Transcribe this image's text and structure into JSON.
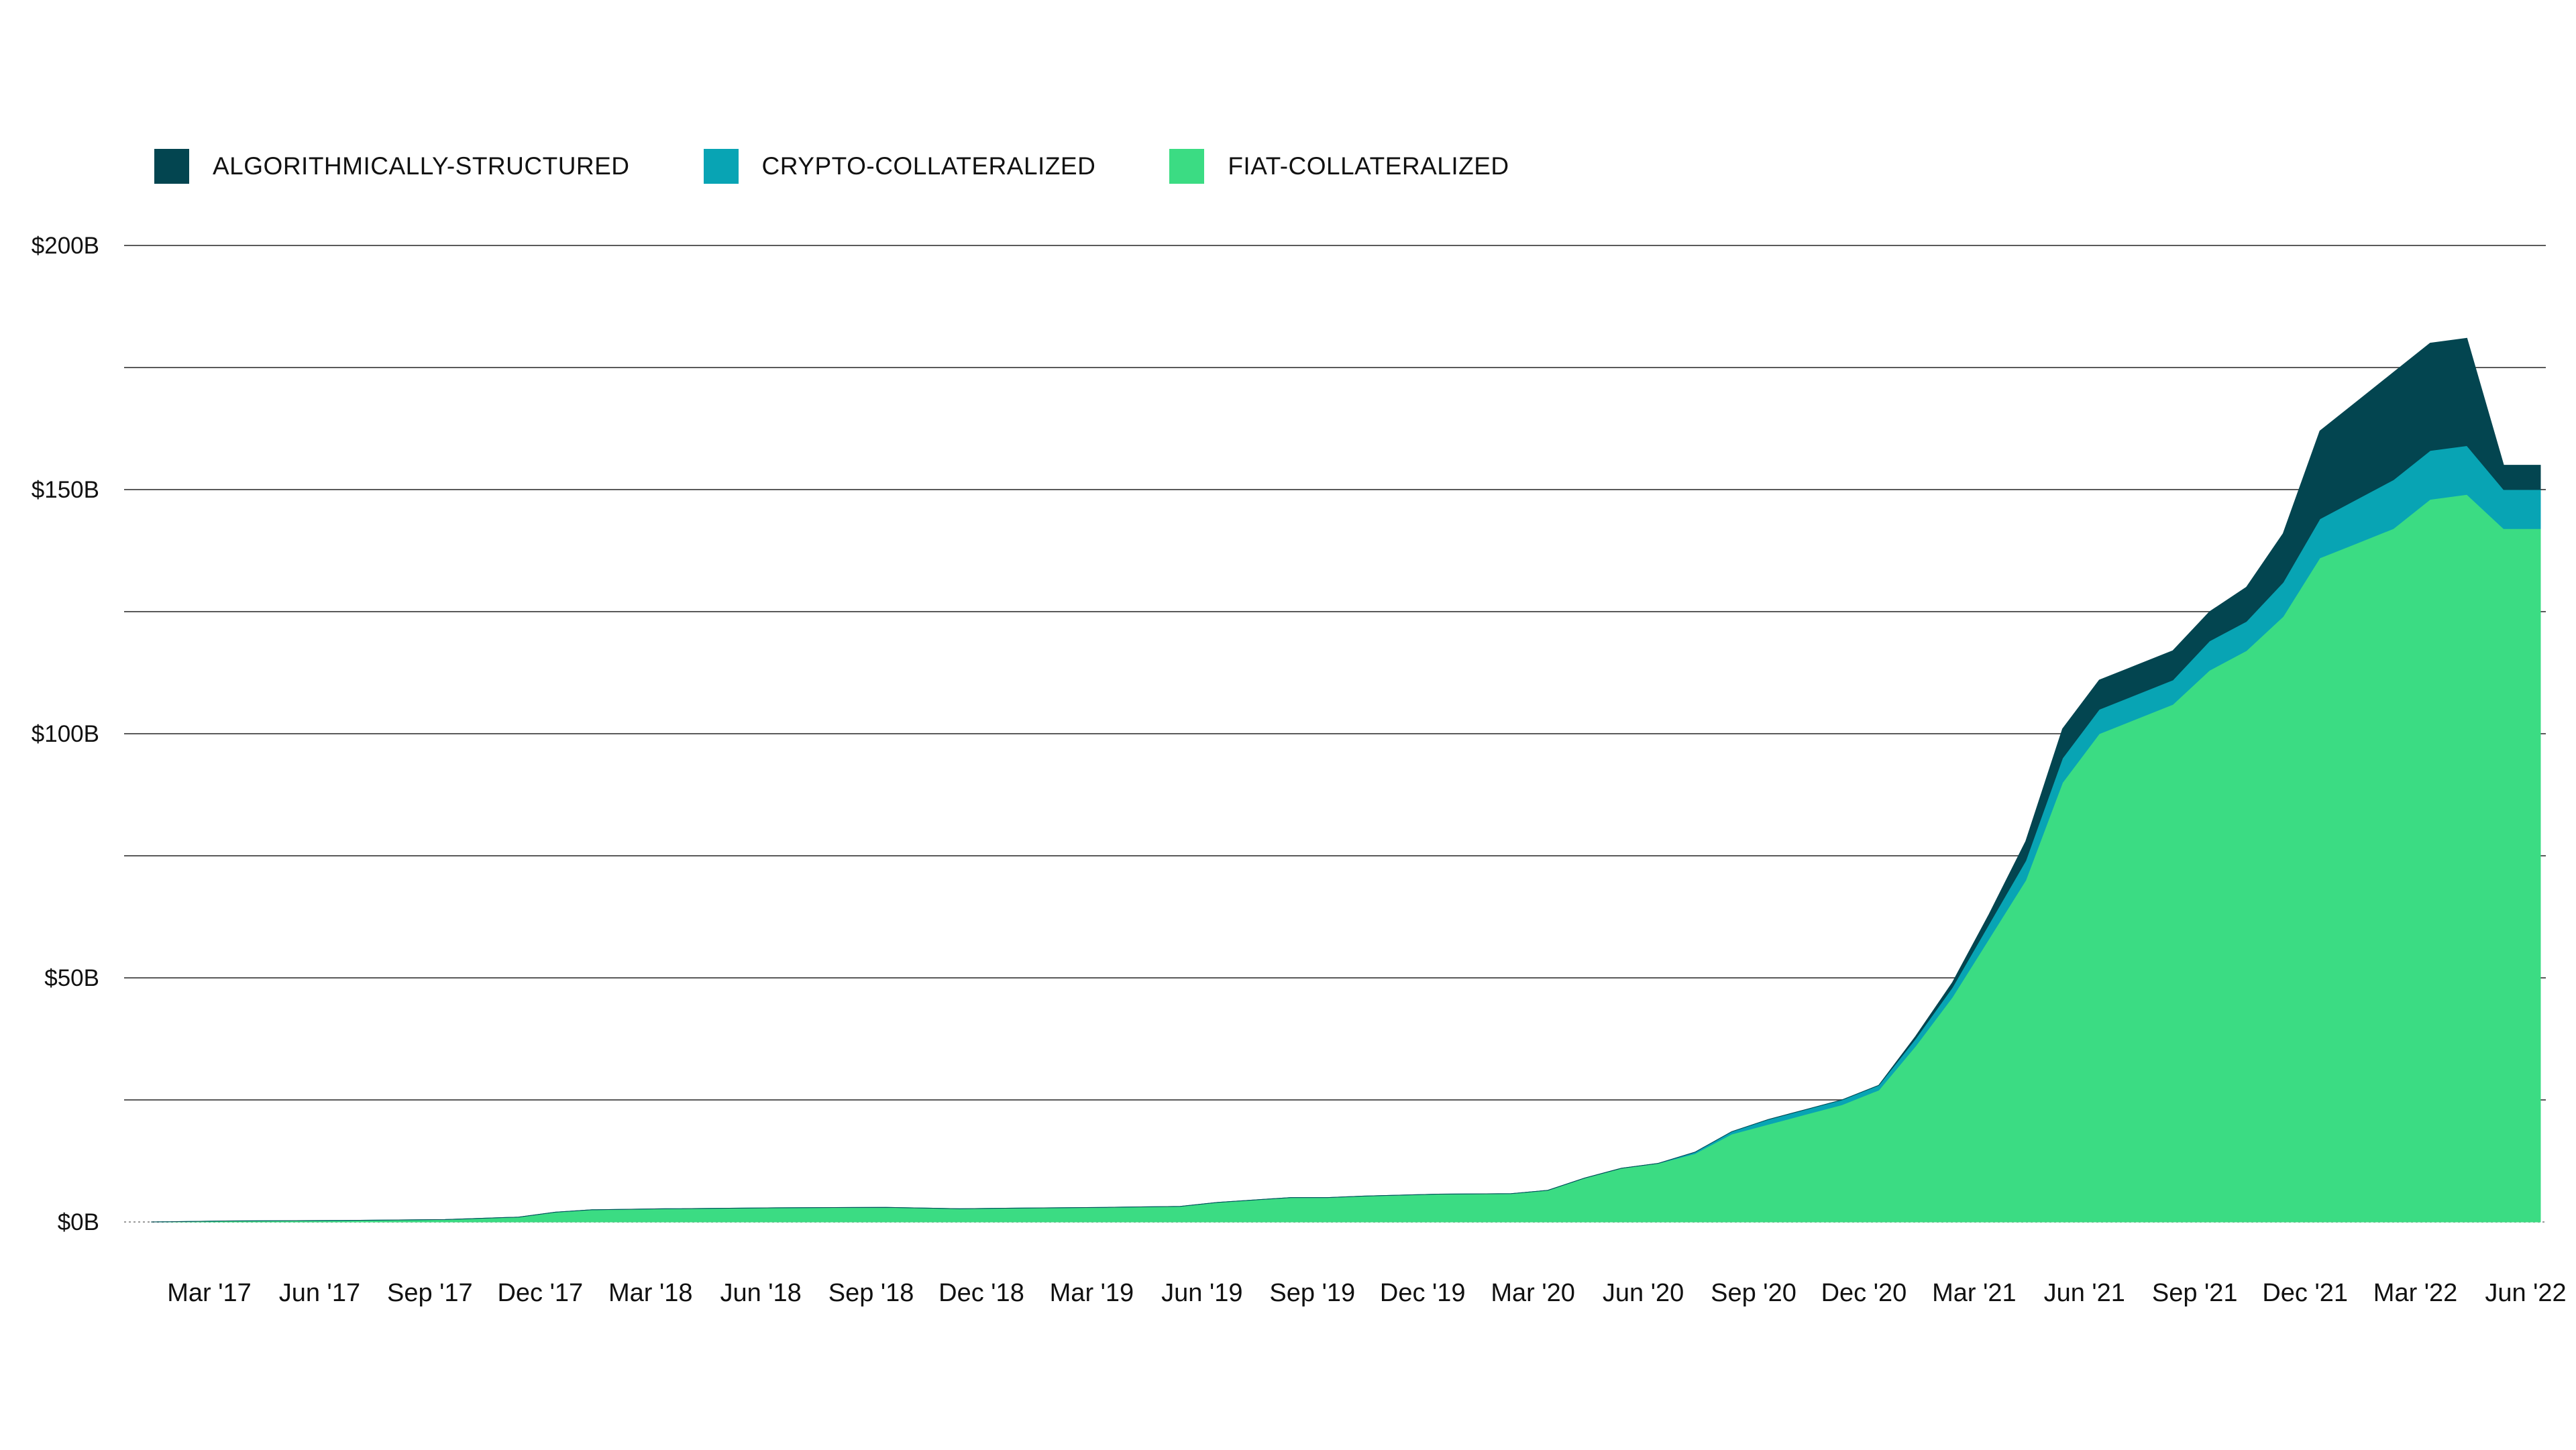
{
  "chart_data": {
    "type": "area",
    "stacked": true,
    "title": "",
    "xlabel": "",
    "ylabel": "",
    "ylim": [
      0,
      200
    ],
    "y_unit": "B",
    "y_ticks": [
      "$200B",
      "$150B",
      "$100B",
      "$50B",
      "$0B"
    ],
    "y_tick_values": [
      200,
      150,
      100,
      50,
      0
    ],
    "x_ticks": [
      "Mar '17",
      "Jun '17",
      "Sep '17",
      "Dec '17",
      "Mar '18",
      "Jun '18",
      "Sep '18",
      "Dec '18",
      "Mar '19",
      "Jun '19",
      "Sep '19",
      "Dec '19",
      "Mar '20",
      "Jun '20",
      "Sep '20",
      "Dec '20",
      "Mar '21",
      "Jun '21",
      "Sep '21",
      "Dec '21",
      "Mar '22",
      "Jun '22"
    ],
    "grid": true,
    "legend_position": "top-left",
    "x": [
      "2017-01",
      "2017-03",
      "2017-06",
      "2017-09",
      "2017-11",
      "2017-12",
      "2018-01",
      "2018-03",
      "2018-06",
      "2018-09",
      "2018-11",
      "2018-12",
      "2019-03",
      "2019-05",
      "2019-06",
      "2019-08",
      "2019-09",
      "2019-10",
      "2019-12",
      "2020-02",
      "2020-03",
      "2020-04",
      "2020-05",
      "2020-06",
      "2020-07",
      "2020-08",
      "2020-09",
      "2020-10",
      "2020-11",
      "2020-12",
      "2021-01",
      "2021-02",
      "2021-03",
      "2021-04",
      "2021-05",
      "2021-06",
      "2021-07",
      "2021-08",
      "2021-09",
      "2021-10",
      "2021-11",
      "2021-12",
      "2022-01",
      "2022-02",
      "2022-03",
      "2022-04",
      "2022-05",
      "2022-06"
    ],
    "series": [
      {
        "name": "FIAT-COLLATERALIZED",
        "color": "#3bdc83",
        "values": [
          0,
          0.2,
          0.3,
          0.5,
          1,
          2,
          2.5,
          2.7,
          2.9,
          3,
          2.7,
          2.8,
          3,
          3.2,
          4,
          5,
          5,
          5.3,
          5.7,
          5.8,
          6.5,
          9,
          11,
          12,
          14,
          18,
          20,
          22,
          24,
          27,
          36,
          46,
          58,
          70,
          90,
          100,
          103,
          106,
          113,
          117,
          124,
          136,
          139,
          142,
          148,
          149,
          142,
          142
        ]
      },
      {
        "name": "CRYPTO-COLLATERALIZED",
        "color": "#08a4b4",
        "values": [
          0,
          0,
          0,
          0,
          0,
          0,
          0,
          0,
          0,
          0,
          0,
          0,
          0,
          0,
          0,
          0,
          0,
          0,
          0,
          0,
          0,
          0,
          0,
          0,
          0.3,
          0.5,
          1,
          1,
          1,
          1,
          1.5,
          2,
          3,
          4,
          5,
          5,
          5,
          5,
          6,
          6,
          7,
          8,
          9,
          10,
          10,
          10,
          8,
          8
        ]
      },
      {
        "name": "ALGORITHMICALLY-STRUCTURED",
        "color": "#034550",
        "values": [
          0,
          0,
          0,
          0,
          0,
          0,
          0,
          0,
          0,
          0,
          0,
          0,
          0,
          0,
          0,
          0,
          0,
          0,
          0,
          0,
          0,
          0,
          0,
          0,
          0,
          0,
          0,
          0,
          0,
          0,
          0.5,
          1,
          2,
          4,
          6,
          6,
          6,
          6,
          6,
          7,
          10,
          18,
          20,
          22,
          22,
          22,
          5,
          5
        ]
      }
    ]
  }
}
